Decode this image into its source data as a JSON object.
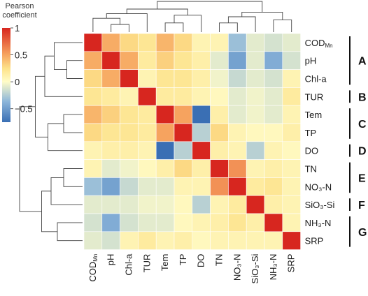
{
  "chart_data": {
    "type": "heatmap",
    "legend": {
      "title_line1": "Pearson",
      "title_line2": "coefficient",
      "ticks": [
        {
          "value": 1,
          "label": "1"
        },
        {
          "value": 0.5,
          "label": "0.5"
        },
        {
          "value": 0,
          "label": "0"
        },
        {
          "value": -0.5,
          "label": "−0.5"
        }
      ],
      "range": [
        -0.75,
        1
      ]
    },
    "colors": {
      "neg_end": "#3a6fb4",
      "neg_mid": "#8db6da",
      "neutral": "#fffcc8",
      "pos_low": "#fde28a",
      "pos_mid": "#f6a35f",
      "pos_end": "#d7261f"
    },
    "variables": [
      {
        "label": "COD",
        "sub": "Mn"
      },
      {
        "label": "pH",
        "sub": ""
      },
      {
        "label": "Chl-a",
        "sub": ""
      },
      {
        "label": "TUR",
        "sub": ""
      },
      {
        "label": "Tem",
        "sub": ""
      },
      {
        "label": "TP",
        "sub": ""
      },
      {
        "label": "DO",
        "sub": ""
      },
      {
        "label": "TN",
        "sub": ""
      },
      {
        "label": "NO₃-N",
        "sub": ""
      },
      {
        "label": "SiO₃-Si",
        "sub": ""
      },
      {
        "label": "NH₃-N",
        "sub": ""
      },
      {
        "label": "SRP",
        "sub": ""
      }
    ],
    "matrix": [
      [
        1,
        0.6,
        0.35,
        0.25,
        0.55,
        0.35,
        0.1,
        0.1,
        -0.35,
        -0.1,
        -0.15,
        -0.1
      ],
      [
        0.6,
        1,
        0.6,
        0.2,
        0.4,
        0.25,
        0.15,
        -0.1,
        -0.5,
        -0.1,
        -0.45,
        -0.15
      ],
      [
        0.35,
        0.6,
        1,
        0.1,
        0.25,
        0.25,
        0.15,
        -0.05,
        -0.2,
        -0.1,
        -0.15,
        0.1
      ],
      [
        0.25,
        0.2,
        0.1,
        1,
        0.2,
        0.2,
        0.1,
        0.05,
        -0.1,
        -0.05,
        -0.1,
        0.2
      ],
      [
        0.55,
        0.4,
        0.25,
        0.2,
        1,
        0.65,
        -0.75,
        0.15,
        -0.1,
        -0.05,
        -0.1,
        0.1
      ],
      [
        0.35,
        0.25,
        0.25,
        0.2,
        0.65,
        1,
        -0.25,
        0.35,
        0.1,
        0.05,
        0.05,
        0.15
      ],
      [
        0.1,
        0.15,
        0.15,
        0.1,
        -0.75,
        -0.25,
        1,
        0.15,
        0.1,
        -0.25,
        0.1,
        0.05
      ],
      [
        0.1,
        -0.1,
        -0.05,
        0.05,
        0.15,
        0.35,
        0.15,
        1,
        0.7,
        0.1,
        0.15,
        0.1
      ],
      [
        -0.35,
        -0.5,
        -0.2,
        -0.1,
        -0.1,
        0.1,
        0.1,
        0.7,
        1,
        0.2,
        0.25,
        0.1
      ],
      [
        -0.1,
        -0.1,
        -0.1,
        -0.05,
        -0.05,
        0.05,
        -0.25,
        0.1,
        0.2,
        1,
        0.15,
        0.1
      ],
      [
        -0.15,
        -0.45,
        -0.15,
        -0.1,
        -0.1,
        0.05,
        0.1,
        0.15,
        0.25,
        0.15,
        1,
        0.1
      ],
      [
        -0.1,
        -0.15,
        0.1,
        0.2,
        0.1,
        0.15,
        0.05,
        0.1,
        0.1,
        0.1,
        0.1,
        1
      ]
    ],
    "groups": [
      {
        "label": "A",
        "rows": [
          0,
          2
        ]
      },
      {
        "label": "B",
        "rows": [
          3,
          3
        ]
      },
      {
        "label": "C",
        "rows": [
          4,
          5
        ]
      },
      {
        "label": "D",
        "rows": [
          6,
          6
        ]
      },
      {
        "label": "E",
        "rows": [
          7,
          8
        ]
      },
      {
        "label": "F",
        "rows": [
          9,
          9
        ]
      },
      {
        "label": "G",
        "rows": [
          10,
          11
        ]
      }
    ],
    "dendrogram_order": [
      "COD",
      "pH",
      "Chl-a",
      "TUR",
      "Tem",
      "TP",
      "DO",
      "TN",
      "NO₃-N",
      "SiO₃-Si",
      "NH₃-N",
      "SRP"
    ]
  }
}
